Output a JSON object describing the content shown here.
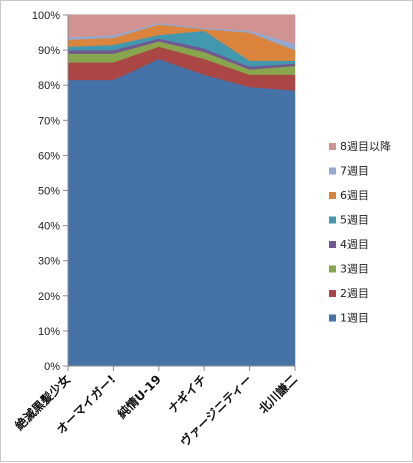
{
  "chart_data": {
    "type": "area",
    "stacked": true,
    "percent": true,
    "categories": [
      "絶滅黒髪少女",
      "オーマイガー!",
      "純情U-19",
      "ナギイチ",
      "ヴァージニティー",
      "北川謙二"
    ],
    "ylim": [
      0,
      100
    ],
    "yticks": [
      "0%",
      "10%",
      "20%",
      "30%",
      "40%",
      "50%",
      "60%",
      "70%",
      "80%",
      "90%",
      "100%"
    ],
    "legend_position": "right",
    "grid": true,
    "series": [
      {
        "name": "1週目",
        "color": "#4572A7",
        "values": [
          81.5,
          81.5,
          87.5,
          83.0,
          79.5,
          78.5
        ]
      },
      {
        "name": "2週目",
        "color": "#AA4643",
        "values": [
          5.0,
          5.0,
          3.5,
          4.5,
          3.5,
          4.5
        ]
      },
      {
        "name": "3週目",
        "color": "#89A54E",
        "values": [
          2.5,
          2.5,
          1.5,
          2.0,
          1.5,
          2.5
        ]
      },
      {
        "name": "4週目",
        "color": "#71588F",
        "values": [
          1.0,
          1.0,
          0.8,
          1.0,
          0.8,
          0.7
        ]
      },
      {
        "name": "5週目",
        "color": "#4198AF",
        "values": [
          1.0,
          1.5,
          1.0,
          5.0,
          1.7,
          0.8
        ]
      },
      {
        "name": "6週目",
        "color": "#DB843D",
        "values": [
          2.0,
          2.0,
          3.0,
          0.5,
          8.0,
          3.0
        ]
      },
      {
        "name": "7週目",
        "color": "#93A9CF",
        "values": [
          0.7,
          0.7,
          0.4,
          0.3,
          0.5,
          1.8
        ]
      },
      {
        "name": "8週目以降",
        "color": "#D19392",
        "values": [
          6.3,
          5.8,
          2.3,
          3.7,
          4.5,
          8.2
        ]
      }
    ]
  }
}
